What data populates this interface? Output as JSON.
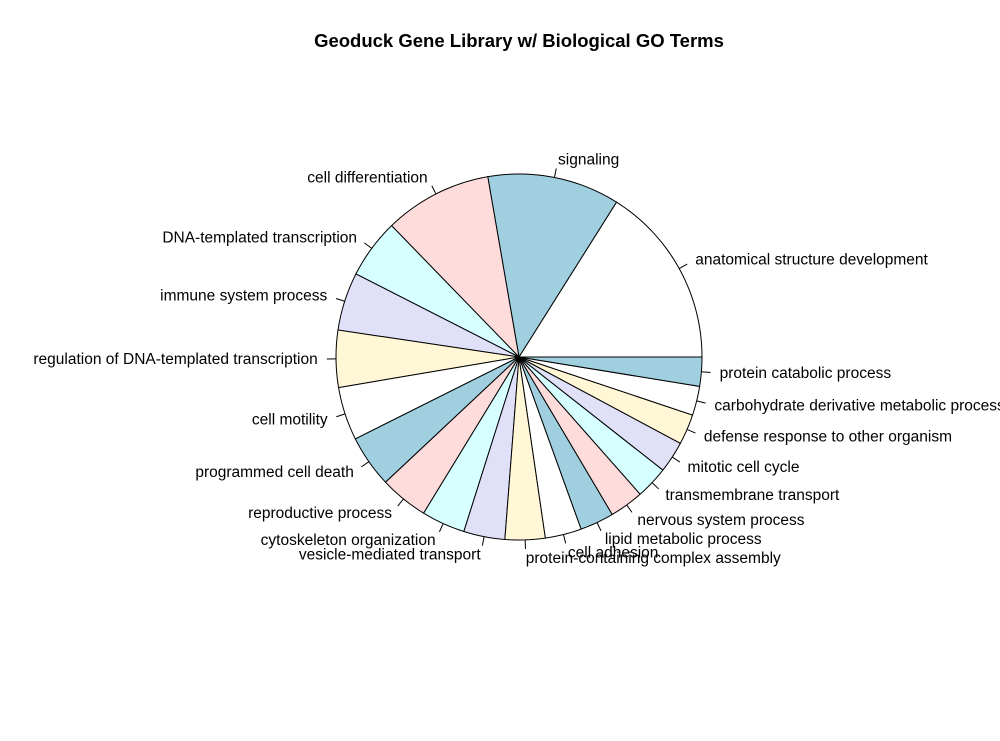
{
  "chart_data": {
    "type": "pie",
    "title": "Geoduck Gene Library w/ Biological GO Terms",
    "start_angle_deg": 0,
    "direction": "counterclockwise",
    "palette": [
      "#ffffff",
      "#a0d0e0",
      "#ffdcdc",
      "#d6ffff",
      "#e0e0f9",
      "#fff7d6"
    ],
    "slices": [
      {
        "label": "anatomical structure development",
        "value": 150,
        "color": "#ffffff"
      },
      {
        "label": "signaling",
        "value": 109,
        "color": "#a0d0e0"
      },
      {
        "label": "cell differentiation",
        "value": 89,
        "color": "#ffdcdc"
      },
      {
        "label": "DNA-templated transcription",
        "value": 49,
        "color": "#d6ffff"
      },
      {
        "label": "immune system process",
        "value": 48,
        "color": "#e0e0f9"
      },
      {
        "label": "regulation of DNA-templated transcription",
        "value": 47,
        "color": "#fff7d6"
      },
      {
        "label": "cell motility",
        "value": 44,
        "color": "#ffffff"
      },
      {
        "label": "programmed cell death",
        "value": 43,
        "color": "#a0d0e0"
      },
      {
        "label": "reproductive process",
        "value": 40,
        "color": "#ffdcdc"
      },
      {
        "label": "cytoskeleton organization",
        "value": 36,
        "color": "#d6ffff"
      },
      {
        "label": "vesicle-mediated transport",
        "value": 34,
        "color": "#e0e0f9"
      },
      {
        "label": "protein-containing complex assembly",
        "value": 33,
        "color": "#fff7d6"
      },
      {
        "label": "cell adhesion",
        "value": 30,
        "color": "#ffffff"
      },
      {
        "label": "lipid metabolic process",
        "value": 28,
        "color": "#a0d0e0"
      },
      {
        "label": "nervous system process",
        "value": 28,
        "color": "#ffdcdc"
      },
      {
        "label": "transmembrane transport",
        "value": 27,
        "color": "#d6ffff"
      },
      {
        "label": "mitotic cell cycle",
        "value": 26,
        "color": "#e0e0f9"
      },
      {
        "label": "defense response to other organism",
        "value": 25,
        "color": "#fff7d6"
      },
      {
        "label": "carbohydrate derivative metabolic process",
        "value": 24,
        "color": "#ffffff"
      },
      {
        "label": "protein catabolic process",
        "value": 24,
        "color": "#a0d0e0"
      }
    ]
  }
}
